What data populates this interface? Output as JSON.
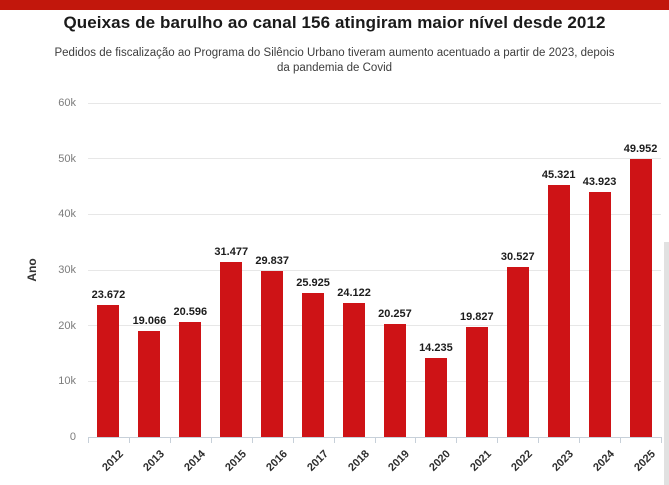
{
  "page": {
    "banner_color": "#c2170c"
  },
  "header": {
    "title": "Queixas de barulho ao canal 156 atingiram maior nível desde 2012",
    "subtitle": "Pedidos de fiscalização ao Programa do Silêncio Urbano tiveram aumento acentuado a partir de 2023, depois da pandemia de Covid"
  },
  "chart_data": {
    "type": "bar",
    "title": "Queixas de barulho ao canal 156 atingiram maior nível desde 2012",
    "subtitle": "Pedidos de fiscalização ao Programa do Silêncio Urbano tiveram aumento acentuado a partir de 2023, depois da pandemia de Covid",
    "categories": [
      "2012",
      "2013",
      "2014",
      "2015",
      "2016",
      "2017",
      "2018",
      "2019",
      "2020",
      "2021",
      "2022",
      "2023",
      "2024",
      "2025"
    ],
    "values": [
      23672,
      19066,
      20596,
      31477,
      29837,
      25925,
      24122,
      20257,
      14235,
      19827,
      30527,
      45321,
      43923,
      49952
    ],
    "labels": [
      "23.672",
      "19.066",
      "20.596",
      "31.477",
      "29.837",
      "25.925",
      "24.122",
      "20.257",
      "14.235",
      "19.827",
      "30.527",
      "45.321",
      "43.923",
      "49.952"
    ],
    "xlabel": "",
    "ylabel": "Ano",
    "ylim": [
      0,
      60000
    ],
    "yticks": [
      0,
      10000,
      20000,
      30000,
      40000,
      50000,
      60000
    ],
    "ytick_labels": [
      "0",
      "10k",
      "20k",
      "30k",
      "40k",
      "50k",
      "60k"
    ],
    "bar_color": "#ce1316",
    "grid": true,
    "legend": false
  }
}
